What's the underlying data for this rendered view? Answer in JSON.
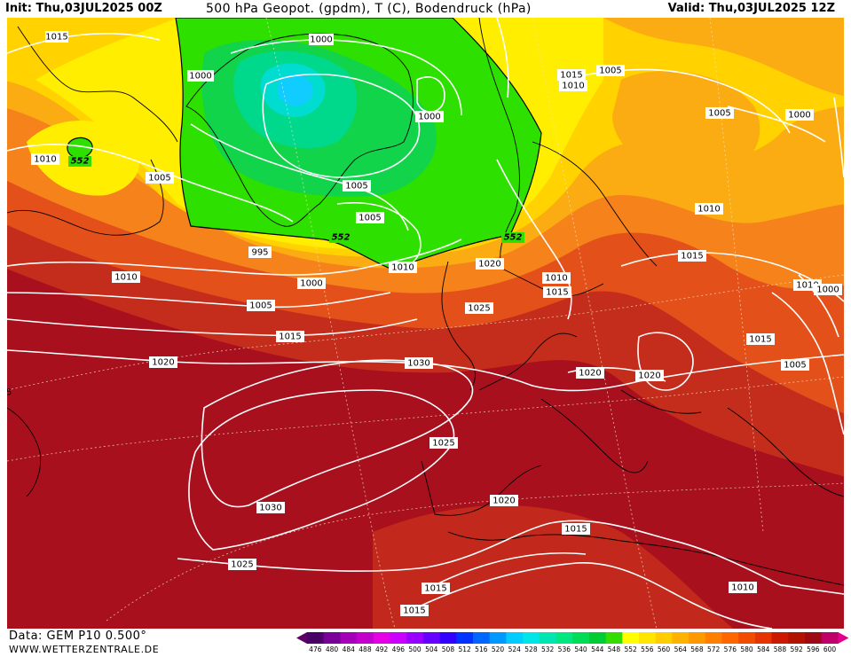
{
  "header": {
    "init": "Init: Thu,03JUL2025 00Z",
    "title": "500 hPa Geopot. (gpdm), T (C), Bodendruck (hPa)",
    "valid": "Valid: Thu,03JUL2025 12Z"
  },
  "footer": {
    "data_source": "Data: GEM P10 0.500°",
    "website": "WWW.WETTERZENTRALE.DE"
  },
  "map": {
    "pressure_labels": [
      "1015",
      "1000",
      "1000",
      "1010",
      "1005",
      "1000",
      "1005",
      "1005",
      "995",
      "1000",
      "1010",
      "1010",
      "1005",
      "1015",
      "1020",
      "1030",
      "1025",
      "1030",
      "1025",
      "1020",
      "1015",
      "1015",
      "1015",
      "1015",
      "1010",
      "1005",
      "1005",
      "1000",
      "1010",
      "1015",
      "1010",
      "1020",
      "1025",
      "1015",
      "1010",
      "1000",
      "1015",
      "1005",
      "1020",
      "1020",
      "1010"
    ],
    "geopot_labels": [
      "552",
      "552",
      "552"
    ],
    "edge_label": "5"
  },
  "legend": {
    "values": [
      "476",
      "480",
      "484",
      "488",
      "492",
      "496",
      "500",
      "504",
      "508",
      "512",
      "516",
      "520",
      "524",
      "528",
      "532",
      "536",
      "540",
      "544",
      "548",
      "552",
      "556",
      "560",
      "564",
      "568",
      "572",
      "576",
      "580",
      "584",
      "588",
      "592",
      "596",
      "600"
    ],
    "colors": [
      "#4b0066",
      "#7a0099",
      "#a300b8",
      "#c400cc",
      "#e600e6",
      "#cc00ff",
      "#9a00ff",
      "#6600ff",
      "#3300ff",
      "#0033ff",
      "#0066ff",
      "#0099ff",
      "#00ccff",
      "#00e5e5",
      "#00e6b3",
      "#00e680",
      "#00dd55",
      "#00cc33",
      "#33dd00",
      "#ffff00",
      "#ffe600",
      "#ffcc00",
      "#ffb300",
      "#ff9900",
      "#ff8000",
      "#ff6600",
      "#f24c00",
      "#e63300",
      "#cc1a00",
      "#b31200",
      "#9e0a14",
      "#c0006a"
    ],
    "arrow_colors": [
      "#5c0066",
      "#e0008a"
    ]
  }
}
